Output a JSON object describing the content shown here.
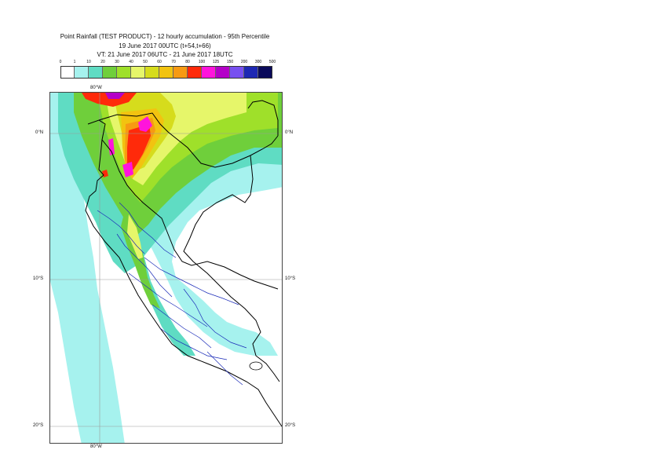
{
  "header": {
    "title": "Point Rainfall (TEST PRODUCT) - 12 hourly accumulation - 95th Percentile",
    "run": "19 June 2017 00UTC (t+54,t+66)",
    "validity": "VT: 21 June 2017 06UTC - 21 June 2017 18UTC"
  },
  "legend": {
    "ticks": [
      "0",
      "1",
      "10",
      "20",
      "30",
      "40",
      "50",
      "60",
      "70",
      "80",
      "100",
      "125",
      "150",
      "200",
      "300",
      "500"
    ],
    "colors": [
      "#ffffff",
      "#a6f2ee",
      "#5fdcc3",
      "#6fcf3b",
      "#9fe02a",
      "#e6f66a",
      "#d6dc1c",
      "#f2c310",
      "#f79a12",
      "#ff2a0a",
      "#ff14dc",
      "#b400c8",
      "#7850f0",
      "#1e28b4",
      "#0a0a5a"
    ]
  },
  "map": {
    "lon_labels": {
      "top": "80°W",
      "bottom": "80°W"
    },
    "lat_labels": [
      {
        "left": "0°N",
        "right": "0°N"
      },
      {
        "left": "10°S",
        "right": "10°S"
      },
      {
        "left": "20°S",
        "right": "20°S"
      }
    ]
  }
}
